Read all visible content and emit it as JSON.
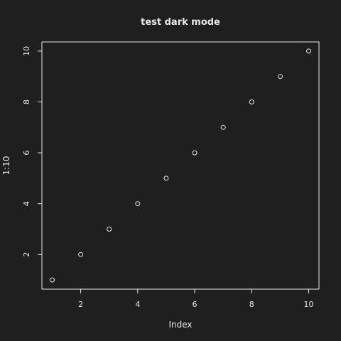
{
  "chart_data": {
    "type": "scatter",
    "title": "test dark mode",
    "xlabel": "Index",
    "ylabel": "1:10",
    "x": [
      1,
      2,
      3,
      4,
      5,
      6,
      7,
      8,
      9,
      10
    ],
    "y": [
      1,
      2,
      3,
      4,
      5,
      6,
      7,
      8,
      9,
      10
    ],
    "xlim": [
      0.64,
      10.36
    ],
    "ylim": [
      0.64,
      10.36
    ],
    "xticks": [
      2,
      4,
      6,
      8,
      10
    ],
    "yticks": [
      2,
      4,
      6,
      8,
      10
    ],
    "xtick_labels": [
      "2",
      "4",
      "6",
      "8",
      "10"
    ],
    "ytick_labels": [
      "2",
      "4",
      "6",
      "8",
      "10"
    ],
    "marker": "open-circle",
    "grid": false,
    "legend": "none",
    "colors": {
      "background": "#1f1f1f",
      "foreground": "#e8e8e8"
    }
  }
}
